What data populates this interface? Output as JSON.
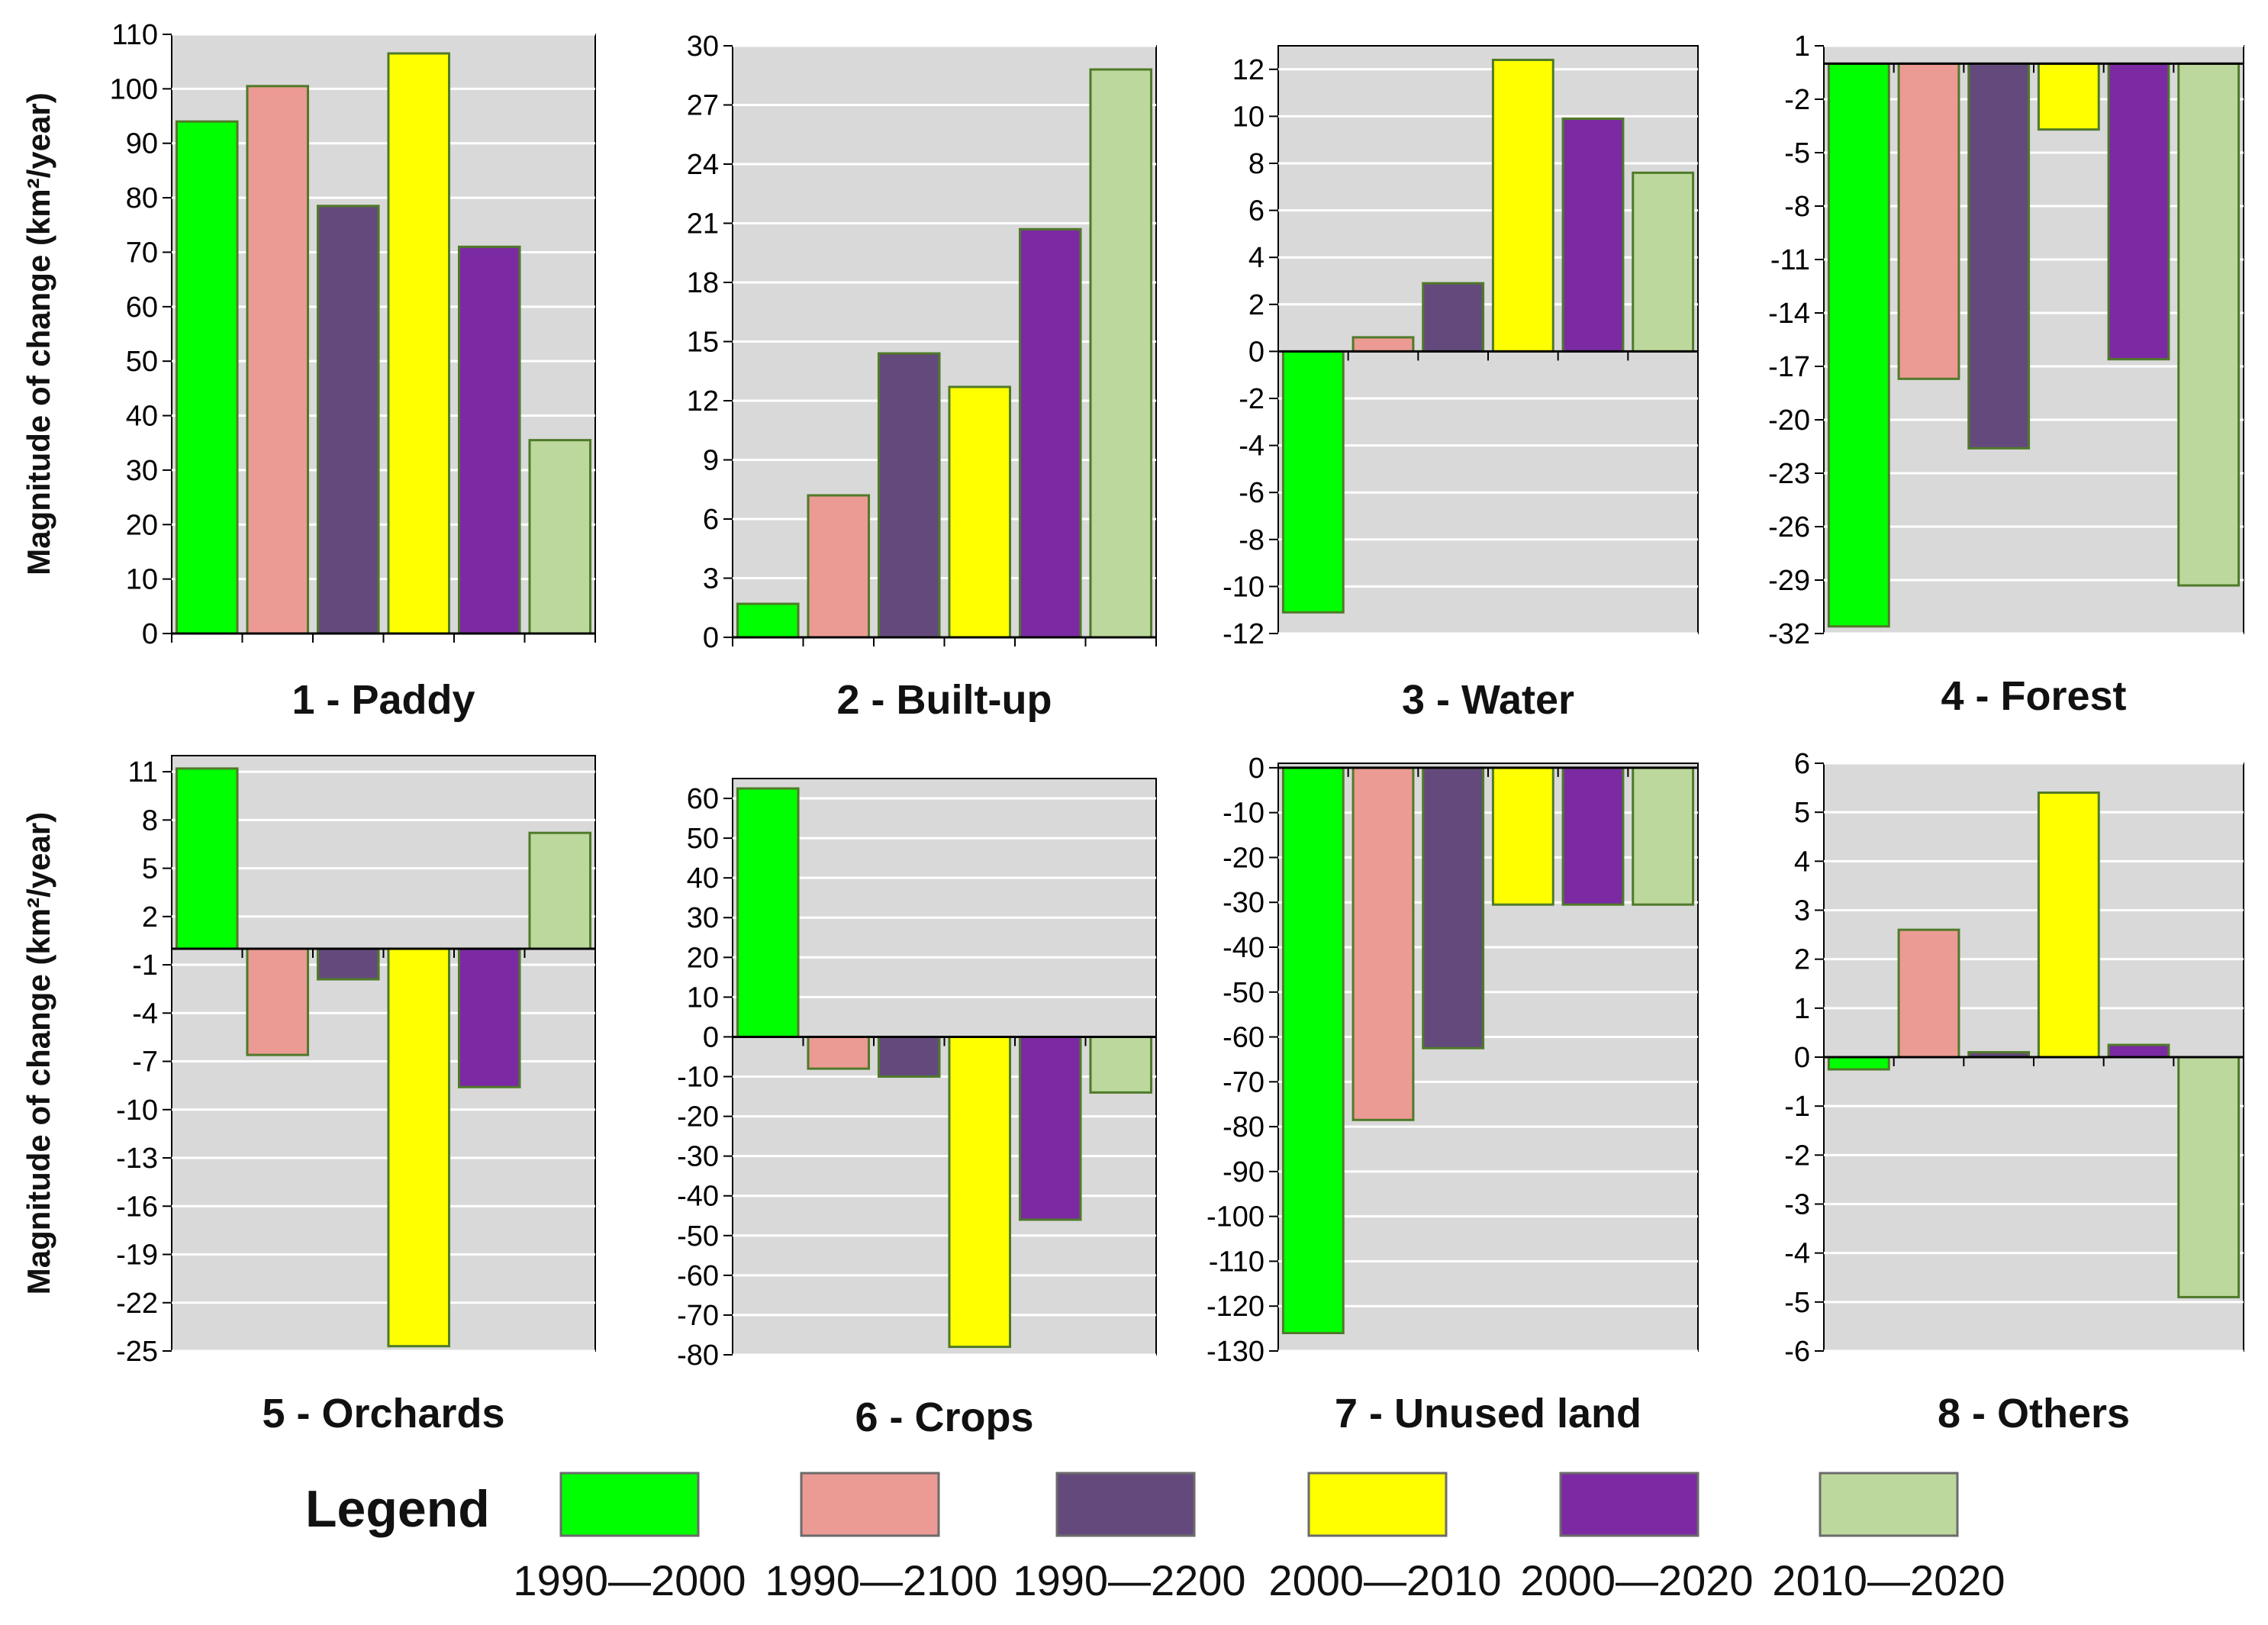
{
  "legend": {
    "title": "Legend",
    "series": [
      {
        "name": "1990—2000",
        "color": "#00FF00"
      },
      {
        "name": "1990—2100",
        "color": "#EC9A94"
      },
      {
        "name": "1990—2200",
        "color": "#644A7C"
      },
      {
        "name": "2000—2010",
        "color": "#FFFF00"
      },
      {
        "name": "2000—2020",
        "color": "#7B2AA3"
      },
      {
        "name": "2010—2020",
        "color": "#BCD89C"
      }
    ]
  },
  "styles": {
    "plot_background": "#D9D9D9",
    "gridline_color": "#FFFFFF",
    "bar_border_color": "#4F7A29"
  },
  "chart_data": [
    {
      "type": "bar",
      "title": "1 - Paddy",
      "ylabel": "Magnitude of change (km²/year)",
      "ylim": [
        0,
        110
      ],
      "ticks": [
        "0",
        "10",
        "20",
        "30",
        "40",
        "50",
        "60",
        "70",
        "80",
        "90",
        "100",
        "110"
      ],
      "values": [
        94,
        100.5,
        78.5,
        106.5,
        71,
        35.5
      ]
    },
    {
      "type": "bar",
      "title": "2 - Built-up",
      "ylabel": "",
      "ylim": [
        0,
        30
      ],
      "ticks": [
        "0",
        "3",
        "6",
        "9",
        "12",
        "15",
        "18",
        "21",
        "24",
        "27",
        "30"
      ],
      "values": [
        1.7,
        7.2,
        14.4,
        12.7,
        20.7,
        28.8
      ]
    },
    {
      "type": "bar",
      "title": "3 - Water",
      "ylabel": "",
      "ylim": [
        -12,
        13
      ],
      "ticks": [
        "-12",
        "-10",
        "-8",
        "-6",
        "-4",
        "-2",
        "0",
        "2",
        "4",
        "6",
        "8",
        "10",
        "12"
      ],
      "values": [
        -11.1,
        0.6,
        2.9,
        12.4,
        9.9,
        7.6
      ]
    },
    {
      "type": "bar",
      "title": "4 - Forest",
      "ylabel": "",
      "ylim": [
        -32,
        1
      ],
      "ticks": [
        "-32",
        "-29",
        "-26",
        "-23",
        "-20",
        "-17",
        "-14",
        "-11",
        "-8",
        "-5",
        "-2",
        "1"
      ],
      "values": [
        -31.6,
        -17.7,
        -21.6,
        -3.7,
        -16.6,
        -29.3
      ]
    },
    {
      "type": "bar",
      "title": "5 - Orchards",
      "ylabel": "Magnitude of change (km²/year)",
      "ylim": [
        -25,
        12
      ],
      "ticks": [
        "-25",
        "-22",
        "-19",
        "-16",
        "-13",
        "-10",
        "-7",
        "-4",
        "-1",
        "2",
        "5",
        "8",
        "11"
      ],
      "values": [
        11.2,
        -6.6,
        -1.9,
        -24.7,
        -8.6,
        7.2
      ]
    },
    {
      "type": "bar",
      "title": "6 - Crops",
      "ylabel": "",
      "ylim": [
        -80,
        65
      ],
      "ticks": [
        "-80",
        "-70",
        "-60",
        "-50",
        "-40",
        "-30",
        "-20",
        "-10",
        "0",
        "10",
        "20",
        "30",
        "40",
        "50",
        "60"
      ],
      "values": [
        62.5,
        -8,
        -10,
        -78,
        -46,
        -14
      ]
    },
    {
      "type": "bar",
      "title": "7 - Unused land",
      "ylabel": "",
      "ylim": [
        -130,
        1
      ],
      "ticks": [
        "-130",
        "-120",
        "-110",
        "-100",
        "-90",
        "-80",
        "-70",
        "-60",
        "-50",
        "-40",
        "-30",
        "-20",
        "-10",
        "0"
      ],
      "values": [
        -126,
        -78.5,
        -62.5,
        -30.5,
        -30.5,
        -30.5
      ]
    },
    {
      "type": "bar",
      "title": "8 - Others",
      "ylabel": "",
      "ylim": [
        -6,
        6
      ],
      "ticks": [
        "-6",
        "-5",
        "-4",
        "-3",
        "-2",
        "-1",
        "0",
        "1",
        "2",
        "3",
        "4",
        "5",
        "6"
      ],
      "values": [
        -0.25,
        2.6,
        0.1,
        5.4,
        0.25,
        -4.9
      ]
    }
  ]
}
